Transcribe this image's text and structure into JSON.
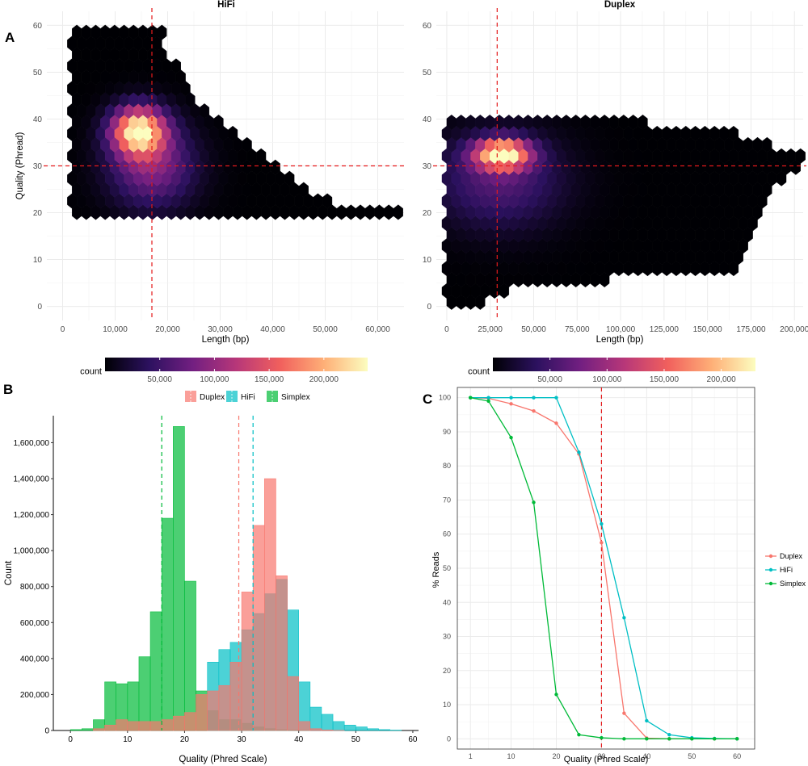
{
  "panels": {
    "A": "A",
    "B": "B",
    "C": "C"
  },
  "colors": {
    "duplex": "#F8766D",
    "hifi": "#00BFC4",
    "simplex": "#00BA38",
    "reference_line": "#E41A1C",
    "grid": "#EBEBEB",
    "hex_scale": [
      "#000004",
      "#2C115F",
      "#721F81",
      "#B73779",
      "#F1605D",
      "#FEAF77",
      "#FCFDBF"
    ]
  },
  "chart_data": [
    {
      "id": "hex-hifi",
      "type": "heatmap",
      "title": "HiFi",
      "xlabel": "Length (bp)",
      "ylabel": "Quality (Phread)",
      "xlim": [
        -3000,
        65000
      ],
      "ylim": [
        -3,
        63
      ],
      "xticks": [
        0,
        10000,
        20000,
        30000,
        40000,
        50000,
        60000
      ],
      "xtick_labels": [
        "0",
        "10,000",
        "20,000",
        "30,000",
        "40,000",
        "50,000",
        "60,000"
      ],
      "yticks": [
        0,
        10,
        20,
        30,
        40,
        50,
        60
      ],
      "ytick_labels": [
        "0",
        "10",
        "20",
        "30",
        "40",
        "50",
        "60"
      ],
      "vline": 17000,
      "hline": 30,
      "hex_width": 1800,
      "density_peaks": [
        {
          "x": 14500,
          "y": 37.5,
          "sx": 3500,
          "sy": 3.5,
          "w": 230000
        },
        {
          "x": 17000,
          "y": 30,
          "sx": 5500,
          "sy": 6,
          "w": 90000
        }
      ],
      "max_quality_by_length": [
        [
          3000,
          60
        ],
        [
          19000,
          60
        ],
        [
          20000,
          54
        ],
        [
          23000,
          49
        ],
        [
          27000,
          42
        ],
        [
          32000,
          37
        ],
        [
          38000,
          32
        ],
        [
          43000,
          28
        ],
        [
          46000,
          25
        ],
        [
          52000,
          21
        ],
        [
          64000,
          20
        ]
      ],
      "min_quality": 20,
      "min_length": 1500
    },
    {
      "id": "hex-duplex",
      "type": "heatmap",
      "title": "Duplex",
      "xlabel": "Length (bp)",
      "ylabel": "",
      "xlim": [
        -6000,
        205000
      ],
      "ylim": [
        -3,
        63
      ],
      "xticks": [
        0,
        25000,
        50000,
        75000,
        100000,
        125000,
        150000,
        175000,
        200000
      ],
      "xtick_labels": [
        "0",
        "25,000",
        "50,000",
        "75,000",
        "100,000",
        "125,000",
        "150,000",
        "175,000",
        "200,000"
      ],
      "yticks": [
        0,
        10,
        20,
        30,
        40,
        50,
        60
      ],
      "ytick_labels": [
        "0",
        "10",
        "20",
        "30",
        "40",
        "50",
        "60"
      ],
      "vline": 29000,
      "hline": 30,
      "hex_width": 5500,
      "density_peaks": [
        {
          "x": 32000,
          "y": 32.5,
          "sx": 11000,
          "sy": 2.2,
          "w": 220000
        },
        {
          "x": 30000,
          "y": 27,
          "sx": 25000,
          "sy": 7,
          "w": 60000
        }
      ],
      "max_quality_by_length": [
        [
          0,
          40
        ],
        [
          100000,
          40
        ],
        [
          130000,
          38
        ],
        [
          160000,
          37
        ],
        [
          195000,
          33
        ]
      ],
      "min_quality_by_length": [
        [
          0,
          0
        ],
        [
          15000,
          0
        ],
        [
          35000,
          4
        ],
        [
          60000,
          5
        ],
        [
          90000,
          6
        ],
        [
          110000,
          7
        ],
        [
          130000,
          7
        ],
        [
          150000,
          7
        ],
        [
          165000,
          7
        ],
        [
          175000,
          15
        ],
        [
          185000,
          26
        ],
        [
          200000,
          29
        ]
      ],
      "min_length": 0
    },
    {
      "id": "colorbar-hifi",
      "type": "colorbar",
      "label": "count",
      "range": [
        0,
        240000
      ],
      "ticks": [
        50000,
        100000,
        150000,
        200000
      ],
      "tick_labels": [
        "50,000",
        "100,000",
        "150,000",
        "200,000"
      ]
    },
    {
      "id": "colorbar-duplex",
      "type": "colorbar",
      "label": "count",
      "range": [
        0,
        230000
      ],
      "ticks": [
        50000,
        100000,
        150000,
        200000
      ],
      "tick_labels": [
        "50,000",
        "100,000",
        "150,000",
        "200,000"
      ]
    },
    {
      "id": "hist-quality",
      "type": "bar",
      "title": "",
      "xlabel": "Quality (Phred Scale)",
      "ylabel": "Count",
      "xlim": [
        -3,
        61
      ],
      "ylim": [
        0,
        1750000
      ],
      "xticks": [
        0,
        10,
        20,
        30,
        40,
        50,
        60
      ],
      "xtick_labels": [
        "0",
        "10",
        "20",
        "30",
        "40",
        "50",
        "60"
      ],
      "yticks": [
        0,
        200000,
        400000,
        600000,
        800000,
        1000000,
        1200000,
        1400000,
        1600000
      ],
      "ytick_labels": [
        "0",
        "200,000",
        "400,000",
        "600,000",
        "800,000",
        "1,000,000",
        "1,200,000",
        "1,400,000",
        "1,600,000"
      ],
      "legend": [
        "Duplex",
        "HiFi",
        "Simplex"
      ],
      "legend_position": "top",
      "x_start": 0,
      "bin_width": 2,
      "series": [
        {
          "name": "Duplex",
          "means": 29.5,
          "values": [
            0,
            0,
            10000,
            30000,
            60000,
            50000,
            50000,
            50000,
            60000,
            80000,
            100000,
            200000,
            220000,
            250000,
            380000,
            770000,
            1140000,
            1400000,
            860000,
            300000,
            50000,
            10000,
            3000,
            1000,
            0,
            0,
            0,
            0,
            0,
            0
          ]
        },
        {
          "name": "HiFi",
          "means": 32,
          "values": [
            0,
            0,
            0,
            0,
            0,
            0,
            0,
            0,
            0,
            0,
            0,
            0,
            380000,
            450000,
            490000,
            560000,
            650000,
            760000,
            840000,
            670000,
            270000,
            130000,
            90000,
            50000,
            30000,
            20000,
            10000,
            5000,
            2000,
            0
          ]
        },
        {
          "name": "Simplex",
          "means": 16,
          "values": [
            5000,
            10000,
            60000,
            270000,
            260000,
            270000,
            410000,
            660000,
            1180000,
            1690000,
            830000,
            220000,
            110000,
            60000,
            60000,
            40000,
            20000,
            10000,
            5000,
            3000,
            1000,
            0,
            0,
            0,
            0,
            0,
            0,
            0,
            0,
            0
          ]
        }
      ],
      "mean_lines": [
        {
          "name": "Simplex",
          "x": 16
        },
        {
          "name": "Duplex",
          "x": 29.5
        },
        {
          "name": "HiFi",
          "x": 32
        }
      ]
    },
    {
      "id": "line-reads",
      "type": "line",
      "title": "",
      "xlabel": "Quality (Phred Scale)",
      "ylabel": "% Reads",
      "xlim": [
        -1.9,
        63.9
      ],
      "ylim": [
        -3,
        103
      ],
      "xticks": [
        1,
        10,
        20,
        30,
        40,
        50,
        60
      ],
      "xtick_labels": [
        "1",
        "10",
        "20",
        "30",
        "40",
        "50",
        "60"
      ],
      "yticks": [
        0,
        10,
        20,
        30,
        40,
        50,
        60,
        70,
        80,
        90,
        100
      ],
      "ytick_labels": [
        "0",
        "10",
        "20",
        "30",
        "40",
        "50",
        "60",
        "70",
        "80",
        "90",
        "100"
      ],
      "x": [
        1,
        5,
        10,
        15,
        20,
        25,
        30,
        35,
        40,
        45,
        50,
        55,
        60
      ],
      "vline": 30,
      "legend_position": "right",
      "series": [
        {
          "name": "Duplex",
          "values": [
            100,
            99.8,
            98.2,
            96.1,
            92.5,
            83.5,
            57.5,
            7.5,
            0.2,
            0,
            0,
            0,
            0
          ]
        },
        {
          "name": "HiFi",
          "values": [
            100,
            100,
            100,
            100,
            100,
            84,
            63,
            35.5,
            5.3,
            1.2,
            0.3,
            0.1,
            0
          ]
        },
        {
          "name": "Simplex",
          "values": [
            100,
            99,
            88.3,
            69.3,
            13,
            1.2,
            0.3,
            0,
            0,
            0,
            0,
            0,
            0
          ]
        }
      ]
    }
  ]
}
